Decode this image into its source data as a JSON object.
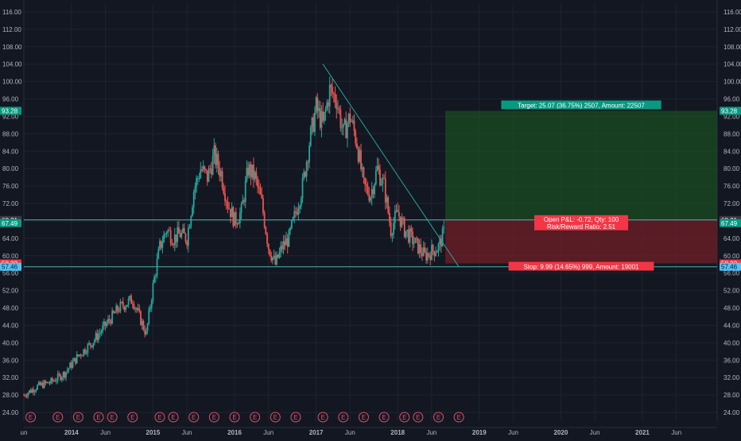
{
  "chart_data": {
    "type": "candlestick",
    "title": "",
    "xlabel": "",
    "ylabel": "",
    "grid": true,
    "background": "#131722",
    "colors": {
      "up": "#26a69a",
      "down": "#ef5350",
      "grid": "#1e2330",
      "axis_text": "#b2b5be",
      "trendline": "#26a69a",
      "target_zone": "#1b5e20",
      "stop_zone": "#7f1d27"
    },
    "ylim": [
      22,
      118
    ],
    "y_ticks": [
      "24.00",
      "28.00",
      "32.00",
      "36.00",
      "40.00",
      "44.00",
      "48.00",
      "52.00",
      "56.00",
      "60.00",
      "64.00",
      "68.00",
      "72.00",
      "76.00",
      "80.00",
      "84.00",
      "88.00",
      "92.00",
      "96.00",
      "100.00",
      "104.00",
      "108.00",
      "112.00",
      "116.00"
    ],
    "x_ticks": [
      {
        "label": "un",
        "date": "2013-06"
      },
      {
        "label": "2014",
        "date": "2014-01"
      },
      {
        "label": "Jun",
        "date": "2014-06"
      },
      {
        "label": "2015",
        "date": "2015-01"
      },
      {
        "label": "Jun",
        "date": "2015-06"
      },
      {
        "label": "2016",
        "date": "2016-01"
      },
      {
        "label": "Jun",
        "date": "2016-06"
      },
      {
        "label": "2017",
        "date": "2017-01"
      },
      {
        "label": "Jun",
        "date": "2017-06"
      },
      {
        "label": "2018",
        "date": "2018-01"
      },
      {
        "label": "Jun",
        "date": "2018-06"
      },
      {
        "label": "2019",
        "date": "2019-01"
      },
      {
        "label": "Jun",
        "date": "2019-06"
      },
      {
        "label": "2020",
        "date": "2020-01"
      },
      {
        "label": "Jun",
        "date": "2020-06"
      },
      {
        "label": "2021",
        "date": "2021-01"
      },
      {
        "label": "Jun",
        "date": "2021-06"
      }
    ],
    "x_range": [
      "2013-06",
      "2021-12"
    ],
    "price_path": [
      [
        "2013-06",
        28
      ],
      [
        "2013-08",
        30
      ],
      [
        "2013-10",
        31
      ],
      [
        "2013-12",
        33
      ],
      [
        "2014-02",
        37
      ],
      [
        "2014-04",
        40
      ],
      [
        "2014-06",
        44
      ],
      [
        "2014-08",
        48
      ],
      [
        "2014-10",
        50
      ],
      [
        "2014-11",
        46
      ],
      [
        "2014-12",
        42
      ],
      [
        "2015-01",
        53
      ],
      [
        "2015-02",
        62
      ],
      [
        "2015-03",
        66
      ],
      [
        "2015-04",
        64
      ],
      [
        "2015-05",
        65
      ],
      [
        "2015-06",
        64
      ],
      [
        "2015-07",
        75
      ],
      [
        "2015-08",
        80
      ],
      [
        "2015-09",
        78
      ],
      [
        "2015-10",
        83
      ],
      [
        "2015-11",
        79
      ],
      [
        "2015-12",
        72
      ],
      [
        "2016-01",
        68
      ],
      [
        "2016-02",
        70
      ],
      [
        "2016-03",
        80
      ],
      [
        "2016-04",
        78
      ],
      [
        "2016-05",
        72
      ],
      [
        "2016-06",
        62
      ],
      [
        "2016-07",
        58
      ],
      [
        "2016-08",
        62
      ],
      [
        "2016-09",
        64
      ],
      [
        "2016-10",
        70
      ],
      [
        "2016-11",
        76
      ],
      [
        "2016-12",
        86
      ],
      [
        "2017-01",
        94
      ],
      [
        "2017-02",
        90
      ],
      [
        "2017-03",
        98
      ],
      [
        "2017-04",
        96
      ],
      [
        "2017-05",
        88
      ],
      [
        "2017-06",
        92
      ],
      [
        "2017-07",
        86
      ],
      [
        "2017-08",
        76
      ],
      [
        "2017-09",
        74
      ],
      [
        "2017-10",
        80
      ],
      [
        "2017-11",
        76
      ],
      [
        "2017-12",
        66
      ],
      [
        "2018-01",
        70
      ],
      [
        "2018-02",
        66
      ],
      [
        "2018-03",
        64
      ],
      [
        "2018-04",
        62
      ],
      [
        "2018-05",
        60
      ],
      [
        "2018-06",
        61
      ],
      [
        "2018-07",
        62
      ],
      [
        "2018-08",
        66
      ]
    ],
    "trendline": {
      "from": [
        "2017-02",
        104
      ],
      "to": [
        "2018-10",
        57.46
      ]
    },
    "horizontal_lines": [
      {
        "value": 68.21,
        "color": "#4db6ac"
      },
      {
        "value": 57.46,
        "color": "#4db6ac"
      }
    ],
    "price_labels_left": [
      {
        "text": "93.28",
        "value": 93.28,
        "bg": "#089981",
        "fg": "#ffffff"
      },
      {
        "text": "68.21",
        "value": 68.21,
        "bg": "#363a45",
        "fg": "#ffffff"
      },
      {
        "text": "67.49",
        "value": 67.49,
        "bg": "#089981",
        "fg": "#ffffff"
      },
      {
        "text": "58.22",
        "value": 58.22,
        "bg": "#f23645",
        "fg": "#ffffff"
      },
      {
        "text": "57.46",
        "value": 57.46,
        "bg": "#4fc3f7",
        "fg": "#131722"
      }
    ],
    "price_labels_right": [
      {
        "text": "93.28",
        "value": 93.28,
        "bg": "#089981",
        "fg": "#ffffff"
      },
      {
        "text": "68.21",
        "value": 68.21,
        "bg": "#363a45",
        "fg": "#ffffff"
      },
      {
        "text": "67.49",
        "value": 67.49,
        "bg": "#089981",
        "fg": "#ffffff"
      },
      {
        "text": "58.22",
        "value": 58.22,
        "bg": "#f23645",
        "fg": "#ffffff"
      },
      {
        "text": "57.46",
        "value": 57.46,
        "bg": "#4fc3f7",
        "fg": "#131722"
      }
    ],
    "position": {
      "start_date": "2018-08",
      "end_date": "2021-12",
      "target": 93.28,
      "entry": 68.21,
      "stop": 58.22,
      "target_label": "Target: 25.07 (36.75%) 2507, Amount: 22507",
      "stop_label": "Stop: 9.99 (14.65%) 999, Amount: 19001",
      "center_line1": "Open P&L: -0.72, Qty: 100",
      "center_line2": "Risk/Reward Ratio: 2.51"
    },
    "earnings_marker": "E",
    "earnings_dates": [
      "2013-07",
      "2013-11",
      "2014-02",
      "2014-05",
      "2014-07",
      "2014-10",
      "2015-02",
      "2015-04",
      "2015-07",
      "2015-10",
      "2016-01",
      "2016-04",
      "2016-07",
      "2016-10",
      "2017-02",
      "2017-05",
      "2017-08",
      "2017-11",
      "2018-02",
      "2018-04",
      "2018-07",
      "2018-10"
    ]
  }
}
